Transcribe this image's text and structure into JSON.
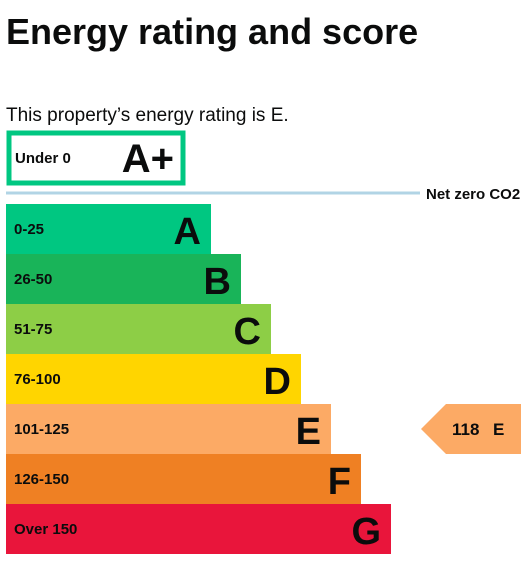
{
  "page": {
    "title": "Energy rating and score",
    "statement": "This property’s energy rating is E."
  },
  "chart_data": {
    "type": "bar",
    "bands": [
      {
        "range": "Under 0",
        "letter": "A+",
        "fill": "#ffffff",
        "border": "#00c781",
        "outlined": true
      },
      {
        "range": "0-25",
        "letter": "A",
        "fill": "#00c781"
      },
      {
        "range": "26-50",
        "letter": "B",
        "fill": "#19b459"
      },
      {
        "range": "51-75",
        "letter": "C",
        "fill": "#8dce46"
      },
      {
        "range": "76-100",
        "letter": "D",
        "fill": "#ffd500"
      },
      {
        "range": "101-125",
        "letter": "E",
        "fill": "#fcaa65"
      },
      {
        "range": "126-150",
        "letter": "F",
        "fill": "#ef8023"
      },
      {
        "range": "Over 150",
        "letter": "G",
        "fill": "#e9153b"
      }
    ],
    "net_zero": {
      "label": "Net zero CO2",
      "line_color": "#b1d4e5"
    },
    "current": {
      "score": "118",
      "rating": "E",
      "band_index": 5,
      "fill": "#fcaa65"
    }
  }
}
